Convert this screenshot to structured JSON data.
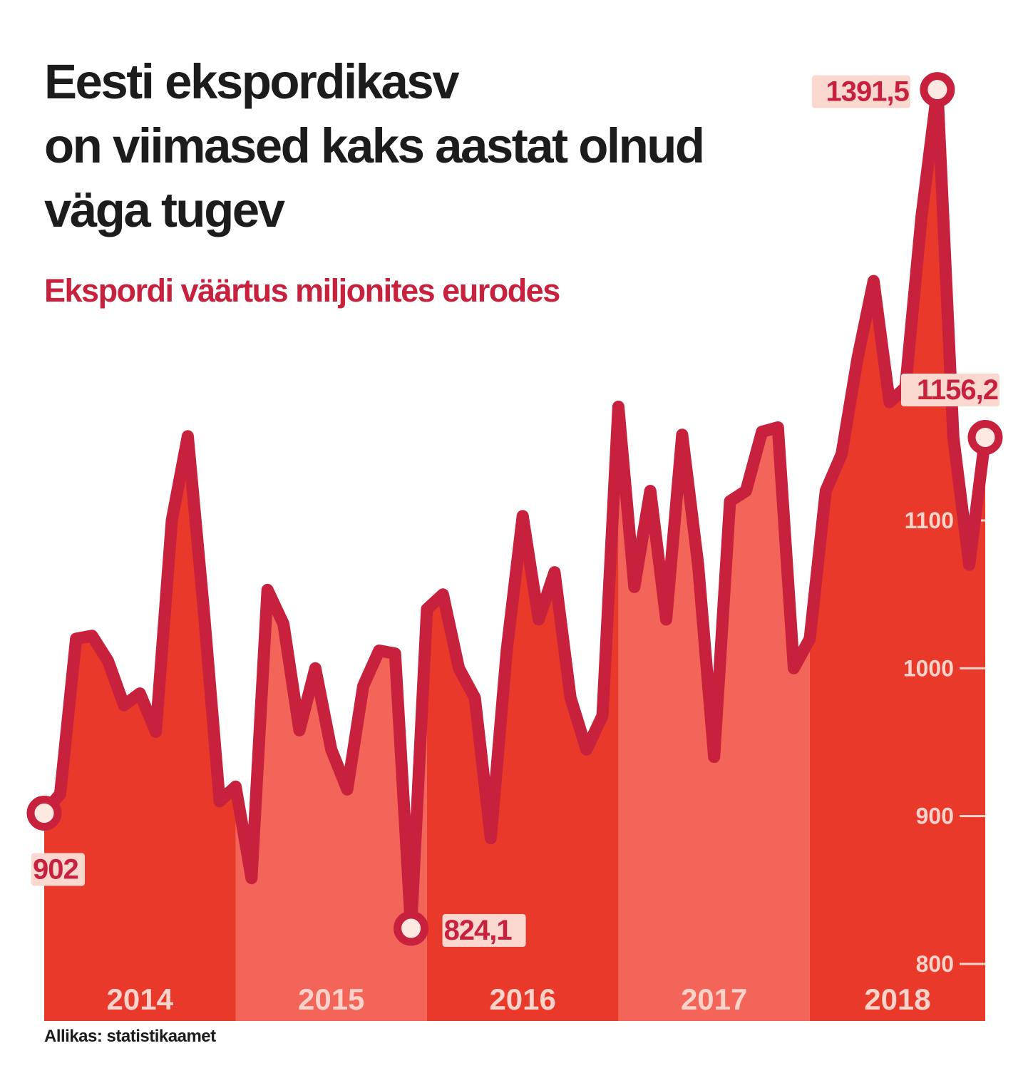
{
  "title": {
    "line1": "Eesti ekspordikasv",
    "line2": "on viimased kaks aastat olnud",
    "line3": "väga tugev"
  },
  "subtitle": "Ekspordi väärtus miljonites eurodes",
  "source": "Allikas: statistikaamet",
  "colors": {
    "line": "#c8213d",
    "band_dark": "#e8392a",
    "band_light": "#f26558",
    "title": "#1c1c1c",
    "label_bg": "#fbd8cf",
    "tick_text": "#ffd3c9"
  },
  "chart_data": {
    "type": "area",
    "title": "Ekspordi väärtus miljonites eurodes",
    "xlabel": "",
    "ylabel": "",
    "ylim": [
      775,
      1400
    ],
    "yticks": [
      800,
      900,
      1000,
      1100
    ],
    "ytick_labels": [
      "800",
      "900",
      "1000",
      "1100"
    ],
    "grid": false,
    "years": [
      "2014",
      "2015",
      "2016",
      "2017",
      "2018"
    ],
    "series": [
      {
        "values": [
          902,
          915,
          1020,
          1022,
          1005,
          975,
          983,
          957,
          1100,
          1157,
          1040,
          910,
          920,
          858,
          1053,
          1030,
          958,
          1000,
          945,
          918,
          988,
          1012,
          1010,
          824.1,
          1040,
          1050,
          1000,
          980,
          885,
          1012,
          1103,
          1033,
          1065,
          980,
          945,
          968,
          1177,
          1055,
          1120,
          1033,
          1158,
          1070,
          940,
          1113,
          1120,
          1160,
          1163,
          1000,
          1020,
          1120,
          1145,
          1210,
          1262,
          1180,
          1190,
          1305,
          1391.5,
          1156.2,
          1070,
          1156.2
        ]
      }
    ],
    "annotations": [
      {
        "label": "902",
        "value": 902
      },
      {
        "label": "824,1",
        "value": 824.1
      },
      {
        "label": "1391,5",
        "value": 1391.5
      },
      {
        "label": "1156,2",
        "value": 1156.2
      }
    ]
  }
}
